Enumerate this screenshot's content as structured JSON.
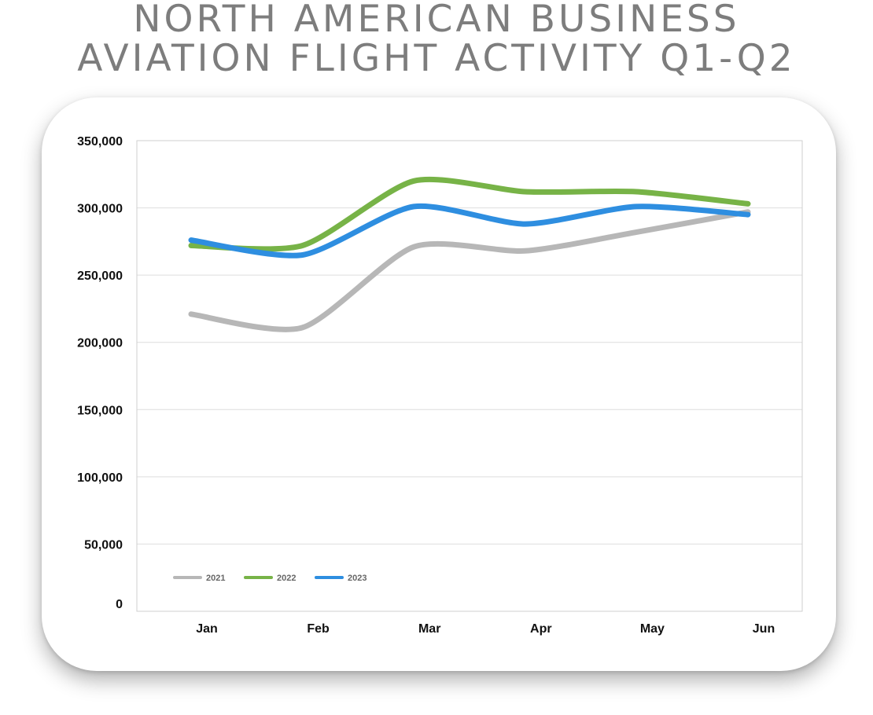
{
  "page": {
    "title_lines": [
      "NORTH AMERICAN BUSINESS",
      "AVIATION FLIGHT ACTIVITY Q1-Q2"
    ]
  },
  "chart_data": {
    "type": "line",
    "title": "NORTH AMERICAN BUSINESS AVIATION FLIGHT ACTIVITY Q1-Q2",
    "categories": [
      "Jan",
      "Feb",
      "Mar",
      "Apr",
      "May",
      "Jun"
    ],
    "series": [
      {
        "name": "2021",
        "color": "#b7b7b7",
        "values": [
          221000,
          211000,
          271000,
          268000,
          282000,
          297000
        ]
      },
      {
        "name": "2022",
        "color": "#77b347",
        "values": [
          272000,
          272000,
          320000,
          312000,
          312000,
          303000
        ]
      },
      {
        "name": "2023",
        "color": "#2e8ee0",
        "values": [
          276000,
          265000,
          301000,
          288000,
          301000,
          295000
        ]
      }
    ],
    "ylim": [
      0,
      350000
    ],
    "yticks": [
      0,
      50000,
      100000,
      150000,
      200000,
      250000,
      300000,
      350000
    ],
    "ytick_labels": [
      "0",
      "50,000",
      "100,000",
      "150,000",
      "200,000",
      "250,000",
      "300,000",
      "350,000"
    ],
    "xlabel": "",
    "ylabel": "",
    "grid": true,
    "legend_position": "bottom-left-inside"
  }
}
